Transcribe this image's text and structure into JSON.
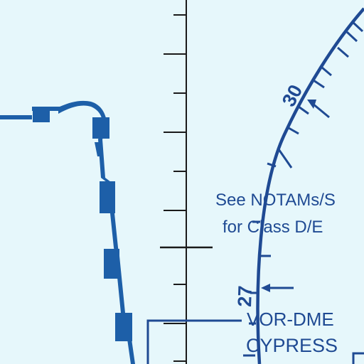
{
  "map": {
    "note": {
      "line1": "See NOTAMs/S",
      "line2": "for Class D/E"
    },
    "compass_labels": {
      "r30": "30",
      "r27": "27"
    },
    "navaid": {
      "type": "VOR-DME",
      "name": "CYPRESS"
    }
  },
  "colors": {
    "background": "#e6f7fb",
    "ink": "#1f4a93",
    "boundary": "#1d5fa8",
    "grid": "#1a1a1a"
  }
}
